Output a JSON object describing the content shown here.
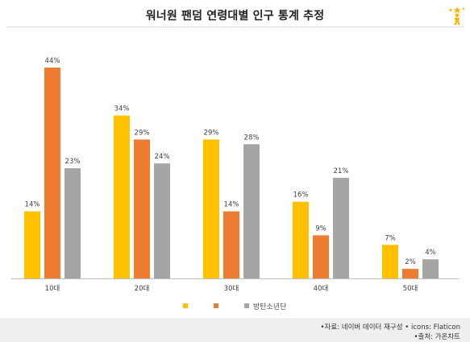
{
  "title": "워너원 팬덤 연령대별 인구 통계 추정",
  "footer": {
    "source_line": "•자료: 네이버 데이터 재구성 • icons: Flaticon",
    "origin_line": "•출처: 가온차트"
  },
  "logo_icon": "sparkle-figure-icon",
  "colors": {
    "series_1": "#FFC000",
    "series_2": "#ED7D31",
    "series_3": "#A5A5A5",
    "baseline": "#bfbfbf",
    "text": "#404040"
  },
  "chart_data": {
    "type": "bar",
    "title": "워너원 팬덤 연령대별 인구 통계 추정",
    "xlabel": "",
    "ylabel": "",
    "categories": [
      "10대",
      "20대",
      "30대",
      "40대",
      "50대"
    ],
    "series": [
      {
        "name": "",
        "values": [
          14,
          34,
          29,
          16,
          7
        ],
        "labels": [
          "14%",
          "34%",
          "29%",
          "16%",
          "7%"
        ]
      },
      {
        "name": "",
        "values": [
          44,
          29,
          14,
          9,
          2
        ],
        "labels": [
          "44%",
          "29%",
          "14%",
          "9%",
          "2%"
        ]
      },
      {
        "name": "방탄소년단",
        "values": [
          23,
          24,
          28,
          21,
          4
        ],
        "labels": [
          "23%",
          "24%",
          "28%",
          "21%",
          "4%"
        ]
      }
    ],
    "ylim": [
      0,
      44
    ],
    "grid": false,
    "legend_position": "bottom"
  }
}
